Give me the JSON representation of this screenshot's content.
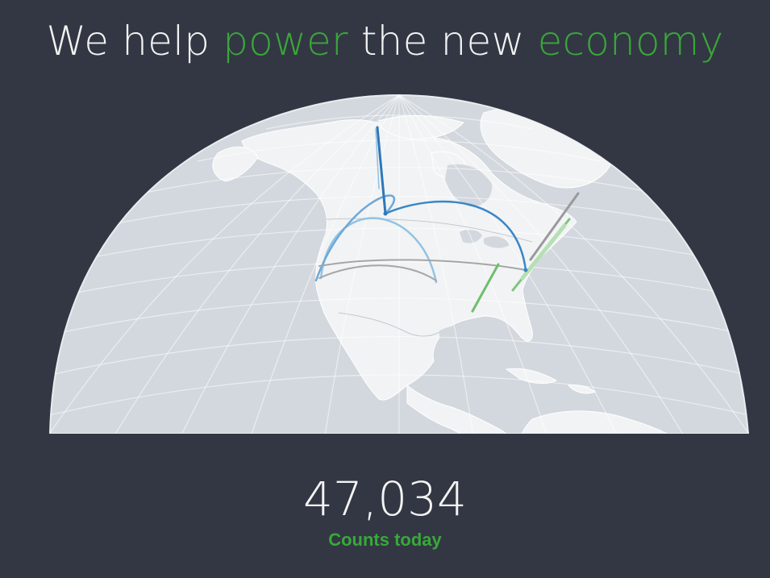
{
  "headline": {
    "part1": "We help ",
    "accent1": "power",
    "part2": " the new ",
    "accent2": "economy"
  },
  "stats": {
    "count": "47,034",
    "label": "Counts today"
  },
  "colors": {
    "background": "#323743",
    "accent_green": "#3aa63a",
    "globe_ocean": "#d4d9df",
    "land": "#f3f4f5",
    "route_blue": "#2f7fc1",
    "route_light_blue": "#8ec1e4",
    "route_gray": "#9a9a9a",
    "route_green": "#6cc06c"
  }
}
